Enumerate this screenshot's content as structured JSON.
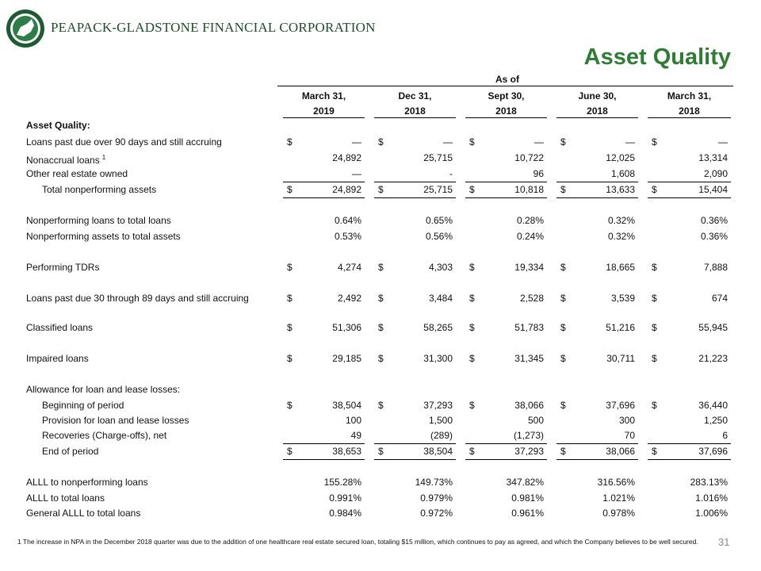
{
  "header": {
    "company": "PEAPACK-GLADSTONE FINANCIAL CORPORATION",
    "title": "Asset Quality"
  },
  "table": {
    "as_of": "As of",
    "columns": [
      {
        "line1": "March 31,",
        "line2": "2019"
      },
      {
        "line1": "Dec 31,",
        "line2": "2018"
      },
      {
        "line1": "Sept 30,",
        "line2": "2018"
      },
      {
        "line1": "June 30,",
        "line2": "2018"
      },
      {
        "line1": "March 31,",
        "line2": "2018"
      }
    ],
    "rows": [
      {
        "label": "Asset Quality:"
      },
      {
        "label": "Loans past due over 90 days and still accruing",
        "currency": "$",
        "values": [
          "—",
          "—",
          "—",
          "—",
          "—"
        ]
      },
      {
        "label": "Nonaccrual loans",
        "note": "1",
        "values": [
          "24,892",
          "25,715",
          "10,722",
          "12,025",
          "13,314"
        ]
      },
      {
        "label": "Other real estate owned",
        "values": [
          "—",
          "-",
          "96",
          "1,608",
          "2,090"
        ]
      },
      {
        "label": "Total nonperforming assets",
        "currency": "$",
        "values": [
          "24,892",
          "25,715",
          "10,818",
          "13,633",
          "15,404"
        ]
      },
      {
        "label": "Nonperforming loans to total loans",
        "values": [
          "0.64%",
          "0.65%",
          "0.28%",
          "0.32%",
          "0.36%"
        ]
      },
      {
        "label": "Nonperforming assets to total assets",
        "values": [
          "0.53%",
          "0.56%",
          "0.24%",
          "0.32%",
          "0.36%"
        ]
      },
      {
        "label": "Performing TDRs",
        "currency": "$",
        "values": [
          "4,274",
          "4,303",
          "19,334",
          "18,665",
          "7,888"
        ]
      },
      {
        "label": "Loans past due 30 through 89 days and still accruing",
        "currency": "$",
        "values": [
          "2,492",
          "3,484",
          "2,528",
          "3,539",
          "674"
        ]
      },
      {
        "label": "Classified loans",
        "currency": "$",
        "values": [
          "51,306",
          "58,265",
          "51,783",
          "51,216",
          "55,945"
        ]
      },
      {
        "label": "Impaired loans",
        "currency": "$",
        "values": [
          "29,185",
          "31,300",
          "31,345",
          "30,711",
          "21,223"
        ]
      },
      {
        "label": "Allowance for loan and lease losses:"
      },
      {
        "label": "Beginning of period",
        "currency": "$",
        "values": [
          "38,504",
          "37,293",
          "38,066",
          "37,696",
          "36,440"
        ]
      },
      {
        "label": "Provision for loan and lease losses",
        "values": [
          "100",
          "1,500",
          "500",
          "300",
          "1,250"
        ]
      },
      {
        "label": "Recoveries (Charge-offs), net",
        "values": [
          "49",
          "(289)",
          "(1,273)",
          "70",
          "6"
        ]
      },
      {
        "label": "End of period",
        "currency": "$",
        "values": [
          "38,653",
          "38,504",
          "37,293",
          "38,066",
          "37,696"
        ]
      },
      {
        "label": "ALLL to nonperforming loans",
        "values": [
          "155.28%",
          "149.73%",
          "347.82%",
          "316.56%",
          "283.13%"
        ]
      },
      {
        "label": "ALLL to total loans",
        "values": [
          "0.991%",
          "0.979%",
          "0.981%",
          "1.021%",
          "1.016%"
        ]
      },
      {
        "label": "General ALLL to total loans",
        "values": [
          "0.984%",
          "0.972%",
          "0.961%",
          "0.978%",
          "1.006%"
        ]
      }
    ]
  },
  "footnote": "1 The increase in NPA in the December 2018 quarter was due to the addition of one healthcare real estate secured loan, totaling $15 million, which continues to pay as agreed, and which the Company believes to be well secured.",
  "page_number": "31"
}
